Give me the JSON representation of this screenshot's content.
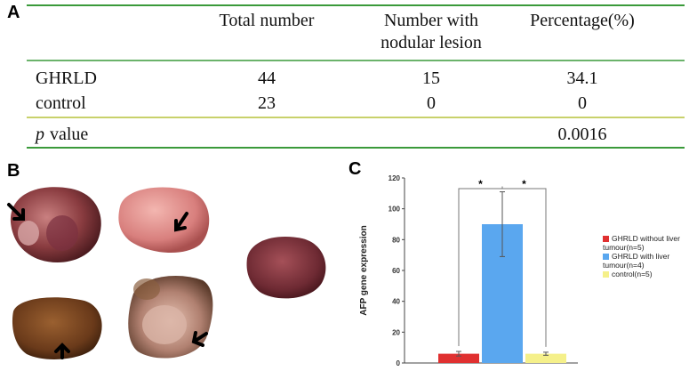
{
  "panels": [
    "A",
    "B",
    "C"
  ],
  "table": {
    "columns": [
      [
        "Total number"
      ],
      [
        "Number with",
        "nodular lesion"
      ],
      [
        "Percentage(%)"
      ]
    ],
    "rows": [
      {
        "label": "GHRLD",
        "cells": [
          44,
          15,
          34.1
        ]
      },
      {
        "label": "control",
        "cells": [
          23,
          0,
          0
        ]
      }
    ],
    "p_row": {
      "italic": "p",
      "label": "value",
      "value": 0.0016
    }
  },
  "chart_data": {
    "type": "bar",
    "ylabel": "AFP gene expression",
    "ylim": [
      0,
      120
    ],
    "yticks": [
      0,
      20,
      40,
      60,
      80,
      100,
      120
    ],
    "series": [
      {
        "name": "GHRLD without liver tumour(n=5)",
        "color": "#e03030",
        "values": [
          6
        ],
        "errors": [
          1.5
        ]
      },
      {
        "name": "GHRLD with liver tumour(n=4)",
        "color": "#5aa7ef",
        "values": [
          90
        ],
        "errors": [
          21
        ]
      },
      {
        "name": "control(n=5)",
        "color": "#f5f08a",
        "values": [
          6
        ],
        "errors": [
          1
        ]
      }
    ],
    "annotations": [
      "*",
      "*"
    ],
    "legend": "right"
  }
}
